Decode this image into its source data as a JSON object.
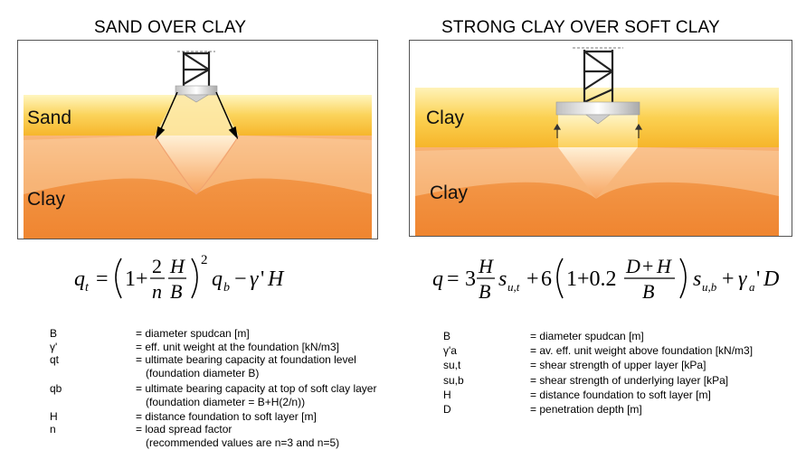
{
  "left": {
    "title": "SAND OVER CLAY",
    "upper_layer": "Sand",
    "lower_layer": "Clay",
    "definitions": [
      {
        "symbol": "B",
        "text": "= diameter spudcan [m]",
        "text2": ""
      },
      {
        "symbol": "γ'",
        "text": "= eff. unit weight at the foundation [kN/m3]",
        "text2": ""
      },
      {
        "symbol": "qt",
        "text": "= ultimate bearing capacity at foundation level",
        "text2": "(foundation diameter B)"
      },
      {
        "symbol": "qb",
        "text": "= ultimate bearing capacity at top of soft clay layer",
        "text2": "(foundation diameter = B+H(2/n))"
      },
      {
        "symbol": "H",
        "text": "= distance foundation to soft layer [m]",
        "text2": ""
      },
      {
        "symbol": "n",
        "text": "= load spread factor",
        "text2": "(recommended values are n=3 and n=5)"
      }
    ]
  },
  "right": {
    "title": "STRONG CLAY OVER SOFT CLAY",
    "upper_layer": "Clay",
    "lower_layer": "Clay",
    "definitions": [
      {
        "symbol": "B",
        "text": "= diameter spudcan [m]"
      },
      {
        "symbol": "γ'a",
        "text": "= av. eff. unit weight above foundation [kN/m3]"
      },
      {
        "symbol": "su,t",
        "text": "= shear strength of upper layer [kPa]"
      },
      {
        "symbol": "su,b",
        "text": "= shear strength of underlying layer [kPa]"
      },
      {
        "symbol": "H",
        "text": "= distance foundation to soft layer [m]"
      },
      {
        "symbol": "D",
        "text": "= penetration depth [m]"
      }
    ]
  },
  "formulas": {
    "left": "q_t = (1 + 2/n · H/B)^2 q_b − γ'H",
    "right": "q = 3 H/B s_u,t + 6(1 + 0.2 (D+H)/B) s_u,b + γ_a'D"
  },
  "colors": {
    "sand_light": "#fff2b0",
    "sand": "#f7c23a",
    "clay_light": "#fde0c6",
    "clay": "#f08a32"
  }
}
